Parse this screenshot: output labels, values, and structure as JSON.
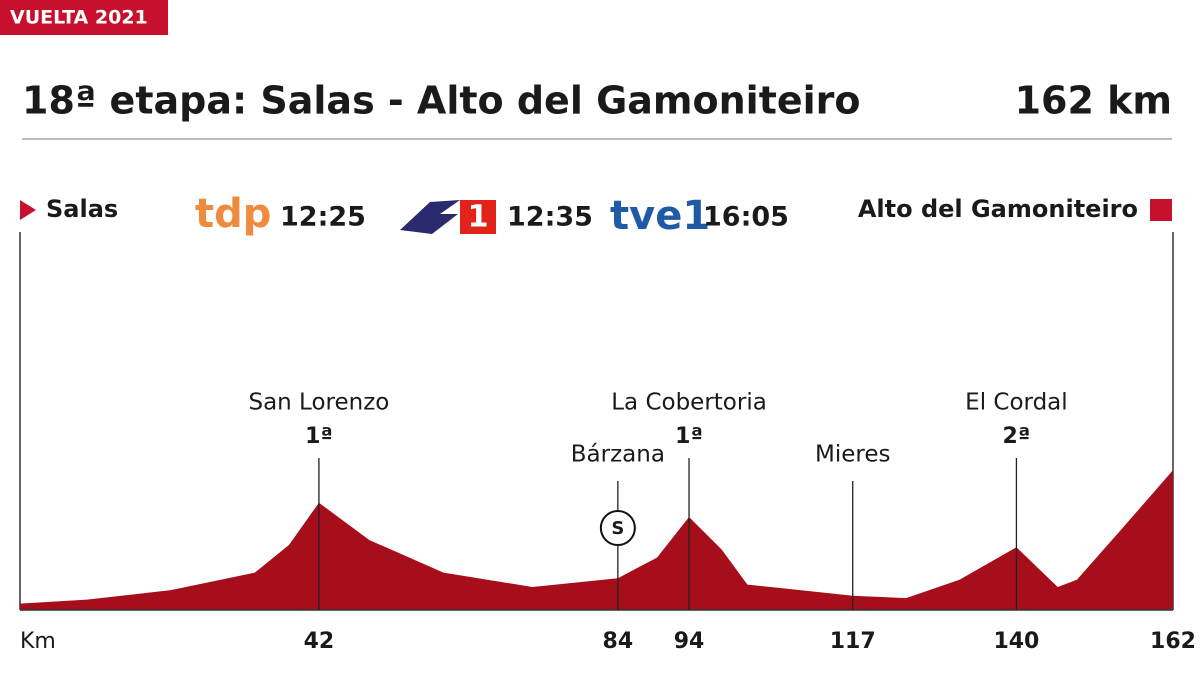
{
  "chart_data": {
    "type": "area",
    "tag": "VUELTA 2021",
    "title": "18ª etapa:  Salas - Alto del Gamoniteiro",
    "distance": "162 km",
    "start": "Salas",
    "finish": "Alto del Gamoniteiro",
    "broadcasts": [
      {
        "channel": "tdp",
        "time": "12:25",
        "color": "#f08a3c"
      },
      {
        "channel": "1",
        "time": "12:35",
        "color": "#e2231a"
      },
      {
        "channel": "tve1",
        "time": "16:05",
        "color": "#1f5aa6"
      }
    ],
    "color": "#a50e1a",
    "x": [
      0,
      9.4,
      21.2,
      33,
      37.8,
      42,
      49.1,
      59.5,
      72,
      84,
      89.5,
      94,
      98.6,
      102.2,
      109.6,
      117,
      124.5,
      132,
      140,
      145.8,
      148.5,
      154.7,
      162
    ],
    "values": [
      80,
      130,
      250,
      470,
      820,
      1350,
      880,
      470,
      290,
      400,
      660,
      1170,
      760,
      320,
      250,
      180,
      150,
      380,
      790,
      290,
      380,
      1010,
      1760
    ],
    "xlim": [
      0,
      162
    ],
    "ylim": [
      0,
      1800
    ],
    "xticks": [
      {
        "value": 0,
        "label": "Km"
      },
      42,
      84,
      94,
      117,
      140,
      162
    ],
    "points": [
      {
        "x": 42,
        "name": "San Lorenzo",
        "category": "1ª"
      },
      {
        "x": 84,
        "name": "Bárzana",
        "marker": "S"
      },
      {
        "x": 94,
        "name": "La Cobertoria",
        "category": "1ª"
      },
      {
        "x": 117,
        "name": "Mieres"
      },
      {
        "x": 140,
        "name": "El Cordal",
        "category": "2ª"
      }
    ]
  }
}
